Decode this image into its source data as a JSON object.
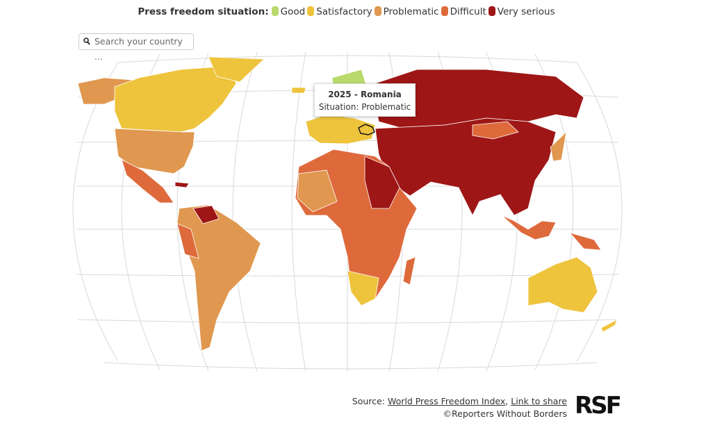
{
  "legend": {
    "title": "Press freedom situation:",
    "items": [
      {
        "label": "Good",
        "color": "#b9d96b"
      },
      {
        "label": "Satisfactory",
        "color": "#eec43d"
      },
      {
        "label": "Problematic",
        "color": "#e0974f"
      },
      {
        "label": "Difficult",
        "color": "#de6a3c"
      },
      {
        "label": "Very serious",
        "color": "#9e1616"
      }
    ]
  },
  "search": {
    "placeholder": "Search your country ..."
  },
  "tooltip": {
    "title": "2025 - Romania",
    "text": "Situation: Problematic"
  },
  "source": {
    "prefix": "Source:",
    "link1": "World Press Freedom Index",
    "separator": ",",
    "link2": "Link to share",
    "copyright": "©Reporters Without Borders"
  },
  "logo": "RSF"
}
